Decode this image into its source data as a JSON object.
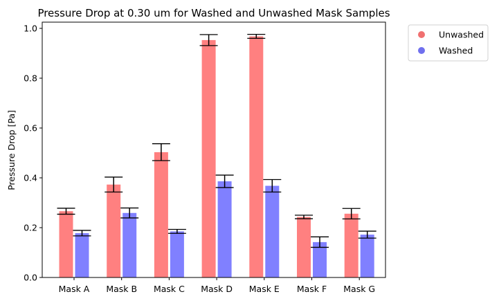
{
  "chart_data": {
    "type": "bar",
    "title": "Pressure Drop at 0.30 um for Washed and Unwashed Mask Samples",
    "xlabel": "",
    "ylabel": "Pressure Drop [Pa]",
    "ylim": [
      0,
      1.025
    ],
    "yticks": [
      0.0,
      0.2,
      0.4,
      0.6,
      0.8,
      1.0
    ],
    "ytick_labels": [
      "0.0",
      "0.2",
      "0.4",
      "0.6",
      "0.8",
      "1.0"
    ],
    "grid": false,
    "legend_position": "outside-top-right",
    "categories": [
      "Mask A",
      "Mask B",
      "Mask C",
      "Mask D",
      "Mask E",
      "Mask F",
      "Mask G"
    ],
    "series": [
      {
        "name": "Unwashed",
        "color": "#ff8080",
        "marker_color": "#f07070",
        "values": [
          0.266,
          0.373,
          0.503,
          0.953,
          0.968,
          0.243,
          0.256
        ],
        "errors": [
          0.012,
          0.03,
          0.034,
          0.022,
          0.008,
          0.007,
          0.021
        ]
      },
      {
        "name": "Washed",
        "color": "#8080ff",
        "marker_color": "#7070ee",
        "values": [
          0.178,
          0.259,
          0.185,
          0.386,
          0.368,
          0.142,
          0.172
        ],
        "errors": [
          0.011,
          0.02,
          0.008,
          0.025,
          0.025,
          0.021,
          0.014
        ]
      }
    ]
  }
}
